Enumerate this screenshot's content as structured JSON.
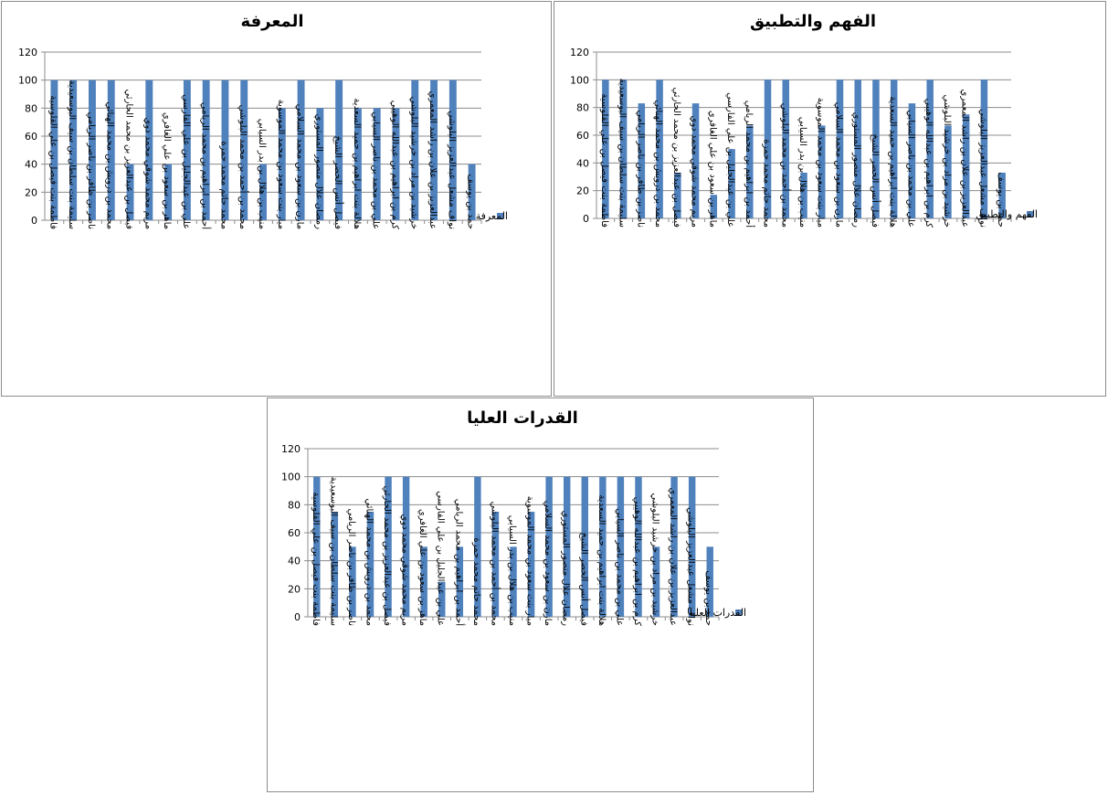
{
  "chart_data": [
    {
      "type": "bar",
      "title": "المعرفة",
      "ylim": [
        0,
        120
      ],
      "yticks": [
        0,
        20,
        40,
        60,
        80,
        100,
        120
      ],
      "grid": true,
      "legend_position": "right",
      "bar_color": "#4f81bd",
      "categories": [
        "فاطمة بنت فيصل بن علي القلوسية",
        "سليمة بنت سلطان بن سيف البوسعيدية",
        "ناصر بن ظافر بن ناصر الريامي",
        "محمد بن درويش بن محمد الهنائي",
        "فيصل بن عبدالعزيز بن محمد الحارثي",
        "مريم محمد شوقي محمد دوي",
        "ماهر بن سعود بن علي الغافري",
        "علي بن عبدالجليل بن علي الفارسي",
        "أحمد بن ابراهيم بن محمد الريامي",
        "محمد حاتم محمد حمزة",
        "محمد بن أحمد بن محمد البلوشي",
        "منيب بن هلال بن بدر السيابي",
        "ميار بنت سعود بن محمد الموسوية",
        "مازن بن سعود بن محمد السلامي",
        "رمضان علال منصور المستوري",
        "فيصل أنس الخضر الشيخ",
        "هلالة بنت ابراهيم بن حميد السعدية",
        "علي بن محمد بن ناصر السيابي",
        "كرم بن ابراهيم بن عبدالله الوهيبي",
        "خرشيد بن مراد بن خرشيد البلوشي",
        "عبدالعزيز بن علان بن راشد المعمري",
        "نواف مشعل عبدالعزيز البلوشي",
        "حمد بن يوسف"
      ],
      "series": [
        {
          "name": "المعرفة",
          "values": [
            100,
            100,
            100,
            100,
            40,
            100,
            40,
            100,
            100,
            100,
            100,
            40,
            80,
            100,
            80,
            100,
            80,
            80,
            80,
            100,
            100,
            100,
            40
          ]
        }
      ]
    },
    {
      "type": "bar",
      "title": "الفهم والتطبيق",
      "ylim": [
        0,
        120
      ],
      "yticks": [
        0,
        20,
        40,
        60,
        80,
        100,
        120
      ],
      "grid": true,
      "legend_position": "right",
      "bar_color": "#4f81bd",
      "categories": [
        "فاطمة بنت فيصل بن علي القلوسية",
        "سليمة بنت سلطان بن سيف البوسعيدية",
        "ناصر بن ظافر بن ناصر الريامي",
        "محمد بن درويش بن محمد الهنائي",
        "فيصل بن عبدالعزيز بن محمد الحارثي",
        "مريم محمد شوقي محمد دوي",
        "ماهر بن سعود بن علي الغافري",
        "علي بن عبدالجليل بن علي الفارسي",
        "أحمد بن ابراهيم بن محمد الريامي",
        "محمد حاتم محمد حمزة",
        "محمد بن أحمد بن محمد البلوشي",
        "منيب بن هلال بن بدر السيابي",
        "ميار بنت سعود بن محمد الموسوية",
        "مازن بن سعود بن محمد السلامي",
        "رمضان علال منصور المستوري",
        "فيصل أنس الخضر الشيخ",
        "هلالة بنت ابراهيم بن حميد السعدية",
        "علي بن محمد بن ناصر السيابي",
        "كرم بن ابراهيم بن عبدالله الوهيبي",
        "خرشيد بن مراد بن خرشيد البلوشي",
        "عبدالعزيز بن علان بن راشد المعمري",
        "نواف مشعل عبدالعزيز البلوشي",
        "حمد بن يوسف"
      ],
      "series": [
        {
          "name": "الفهم والتطبيق",
          "values": [
            100,
            100,
            83,
            100,
            33,
            83,
            17,
            50,
            67,
            100,
            100,
            33,
            67,
            100,
            100,
            100,
            100,
            83,
            100,
            67,
            75,
            100,
            33
          ]
        }
      ]
    },
    {
      "type": "bar",
      "title": "القدرات العليا",
      "ylim": [
        0,
        120
      ],
      "yticks": [
        0,
        20,
        40,
        60,
        80,
        100,
        120
      ],
      "grid": true,
      "legend_position": "right",
      "bar_color": "#4f81bd",
      "categories": [
        "فاطمة بنت فيصل بن علي القلوسية",
        "سليمة بنت سلطان بن سيف البوسعيدية",
        "ناصر بن ظافر بن ناصر الريامي",
        "محمد بن درويش بن محمد الهنائي",
        "فيصل بن عبدالعزيز بن محمد الحارثي",
        "مريم محمد شوقي محمد دوي",
        "ماهر بن سعود بن علي الغافري",
        "علي بن عبدالجليل بن علي الفارسي",
        "أحمد بن ابراهيم بن محمد الريامي",
        "محمد حاتم محمد حمزة",
        "محمد بن أحمد بن محمد البلوشي",
        "منيب بن هلال بن بدر السيابي",
        "ميار بنت سعود بن محمد الموسوية",
        "مازن بن سعود بن محمد السلامي",
        "رمضان علال منصور المستوري",
        "فيصل أنس الخضر الشيخ",
        "هلالة بنت ابراهيم بن حميد السعدية",
        "علي بن محمد بن ناصر السيابي",
        "كرم بن ابراهيم بن عبدالله الوهيبي",
        "خرشيد بن مراد بن خرشيد البلوشي",
        "عبدالعزيز بن علان بن راشد المعمري",
        "نواف مشعل عبدالعزيز البلوشي",
        "حمد بن يوسف"
      ],
      "series": [
        {
          "name": "القدرات العليا",
          "values": [
            100,
            75,
            50,
            75,
            100,
            100,
            50,
            25,
            50,
            100,
            75,
            50,
            75,
            100,
            100,
            100,
            100,
            100,
            100,
            50,
            100,
            100,
            50
          ]
        }
      ]
    }
  ]
}
